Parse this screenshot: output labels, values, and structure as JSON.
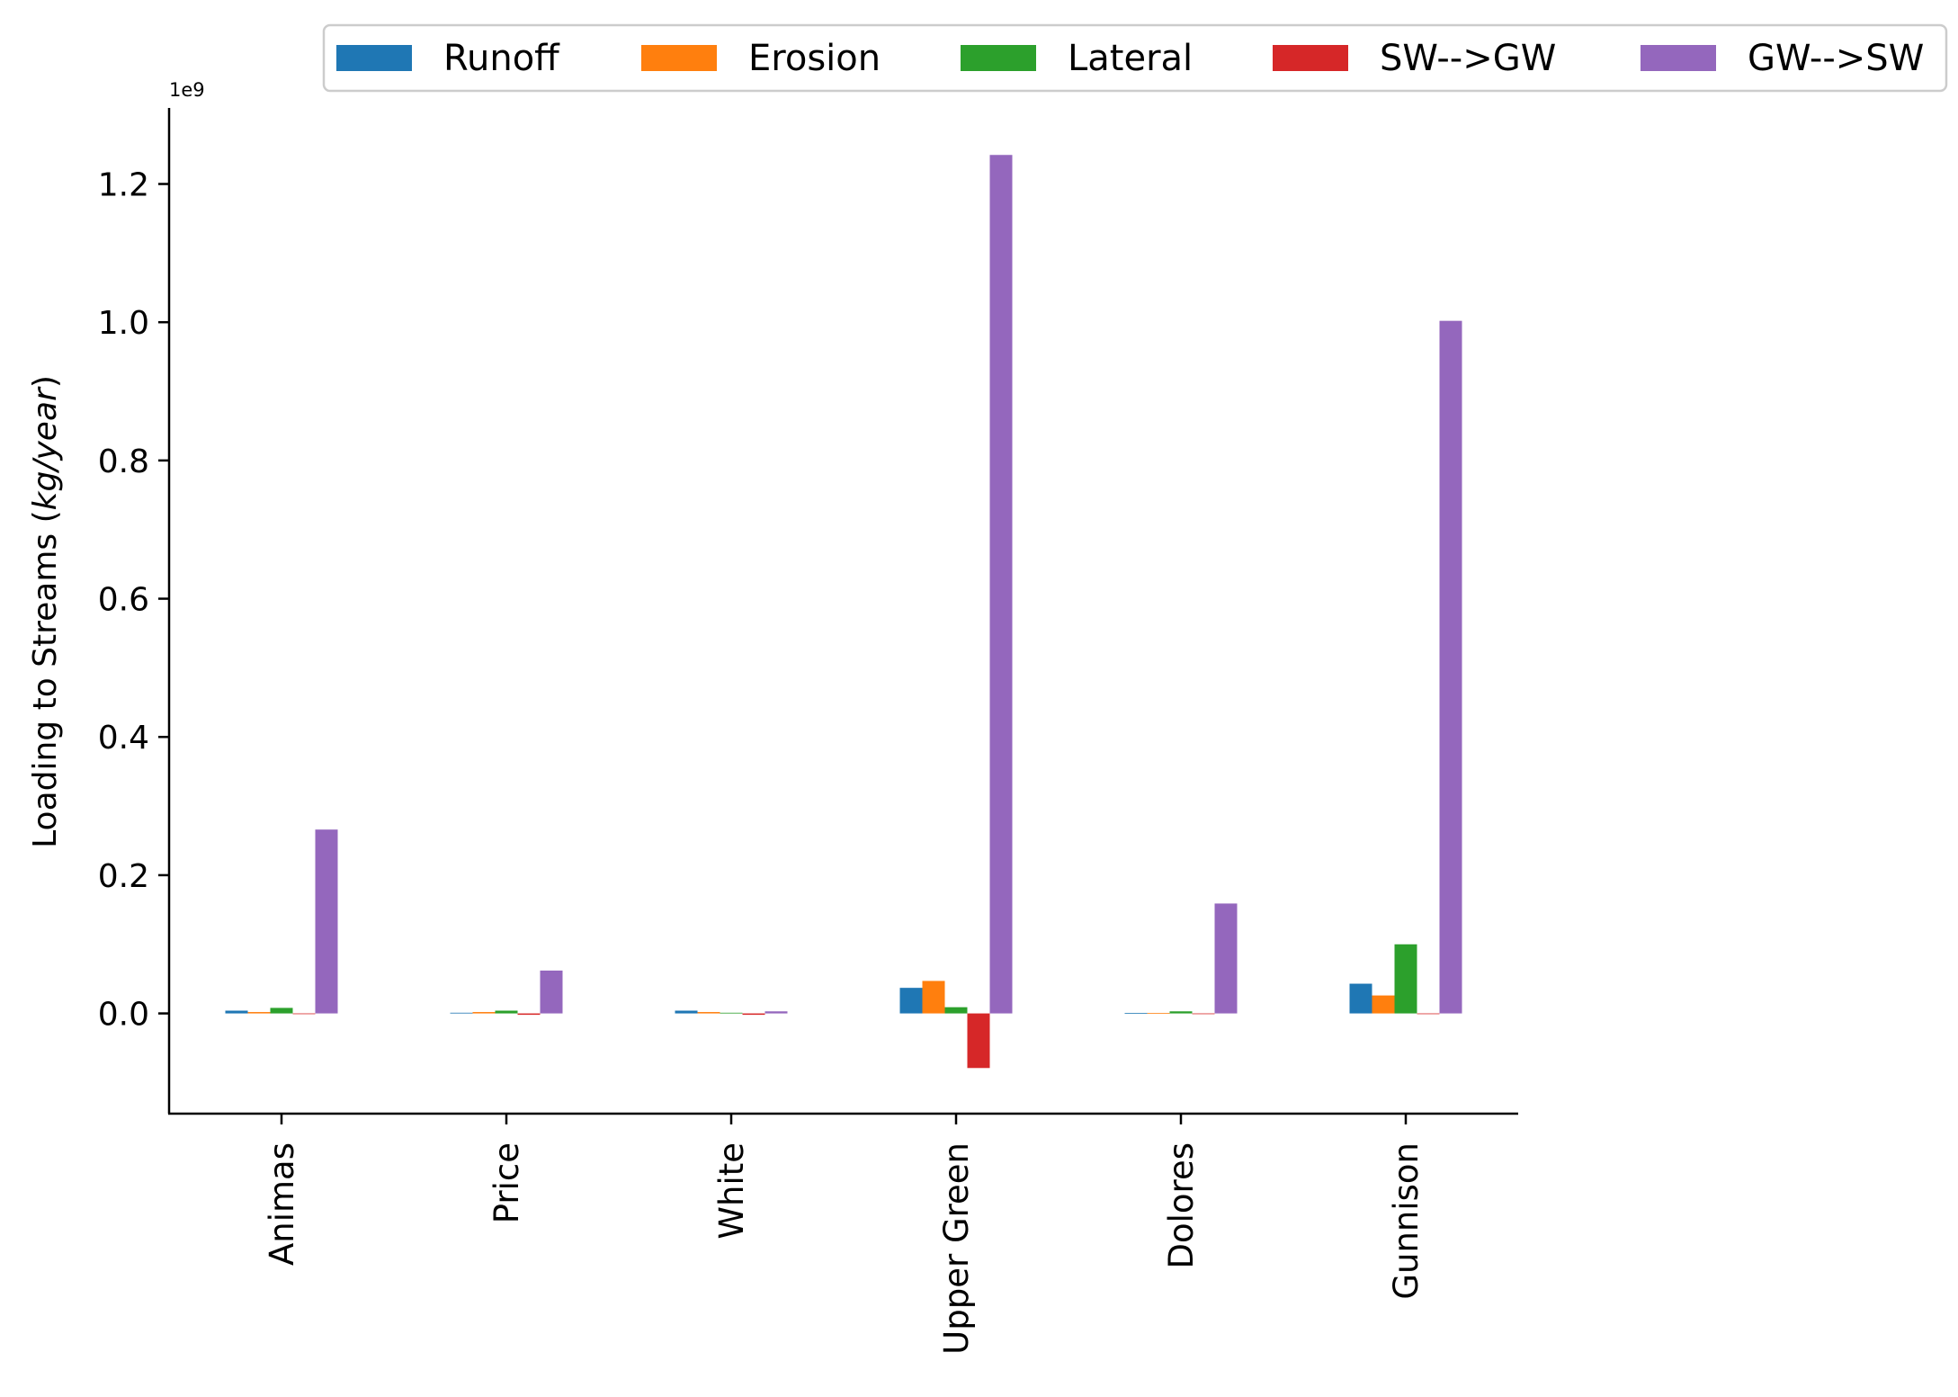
{
  "chart_data": {
    "type": "bar",
    "title": "",
    "xlabel": "",
    "ylabel_prefix": "Loading to Streams (",
    "ylabel_units": "kg/year",
    "ylabel_suffix": ")",
    "y_offset_text": "1e9",
    "y_scale": 1000000000,
    "ylim": [
      -0.145,
      1.31
    ],
    "y_ticks": [
      0.0,
      0.2,
      0.4,
      0.6,
      0.8,
      1.0,
      1.2
    ],
    "y_tick_labels": [
      "0.0",
      "0.2",
      "0.4",
      "0.6",
      "0.8",
      "1.0",
      "1.2"
    ],
    "grid": false,
    "legend_position": "top",
    "categories": [
      "Animas",
      "Price",
      "White",
      "Upper Green",
      "Dolores",
      "Gunnison"
    ],
    "series": [
      {
        "name": "Runoff",
        "color": "#1f77b4",
        "values": [
          0.004,
          0.001,
          0.004,
          0.037,
          0.0005,
          0.043
        ]
      },
      {
        "name": "Erosion",
        "color": "#ff7f0e",
        "values": [
          0.002,
          0.002,
          0.002,
          0.047,
          0.0005,
          0.026
        ]
      },
      {
        "name": "Lateral",
        "color": "#2ca02c",
        "values": [
          0.008,
          0.004,
          0.001,
          0.009,
          0.003,
          0.1
        ]
      },
      {
        "name": "SW-->GW",
        "color": "#d62728",
        "values": [
          0.0,
          -0.002,
          -0.002,
          -0.079,
          0.0,
          0.0
        ]
      },
      {
        "name": "GW-->SW",
        "color": "#9467bd",
        "values": [
          0.266,
          0.062,
          0.003,
          1.242,
          0.159,
          1.002
        ]
      }
    ]
  }
}
